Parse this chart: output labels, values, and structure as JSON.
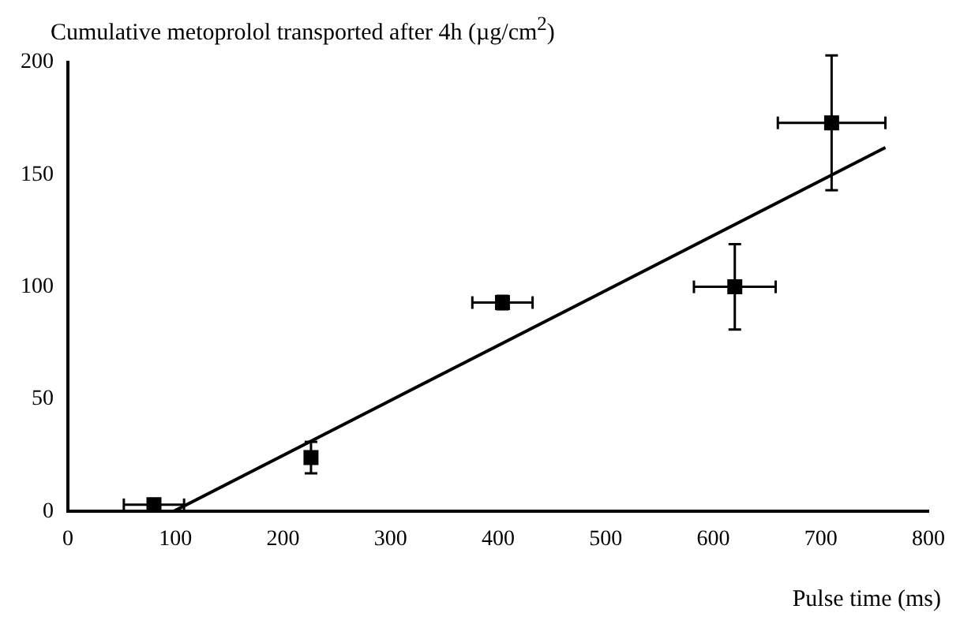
{
  "chart_data": {
    "type": "scatter",
    "ylabel": "Cumulative metoprolol transported after 4h (µg/cm$^{2}$)",
    "xlabel": "Pulse time (ms)",
    "xlim": [
      0,
      800
    ],
    "xticks": [
      0,
      100,
      200,
      300,
      400,
      500,
      600,
      700,
      800
    ],
    "ylim": [
      0,
      200
    ],
    "yticks": [
      0,
      50,
      100,
      150,
      200
    ],
    "grid": false,
    "legend": false,
    "marker": "square",
    "series": [
      {
        "color": "#000000",
        "x": [
          80,
          226,
          404,
          620,
          710
        ],
        "values": [
          3,
          24,
          93,
          100,
          173
        ],
        "errors": [
          2,
          7,
          3,
          19,
          30
        ],
        "xerrors": [
          28,
          5,
          28,
          38,
          50
        ]
      },
      {
        "type": "line",
        "color": "#000000",
        "x": [
          98,
          760
        ],
        "values": [
          0,
          162
        ],
        "marker": "none"
      }
    ]
  }
}
